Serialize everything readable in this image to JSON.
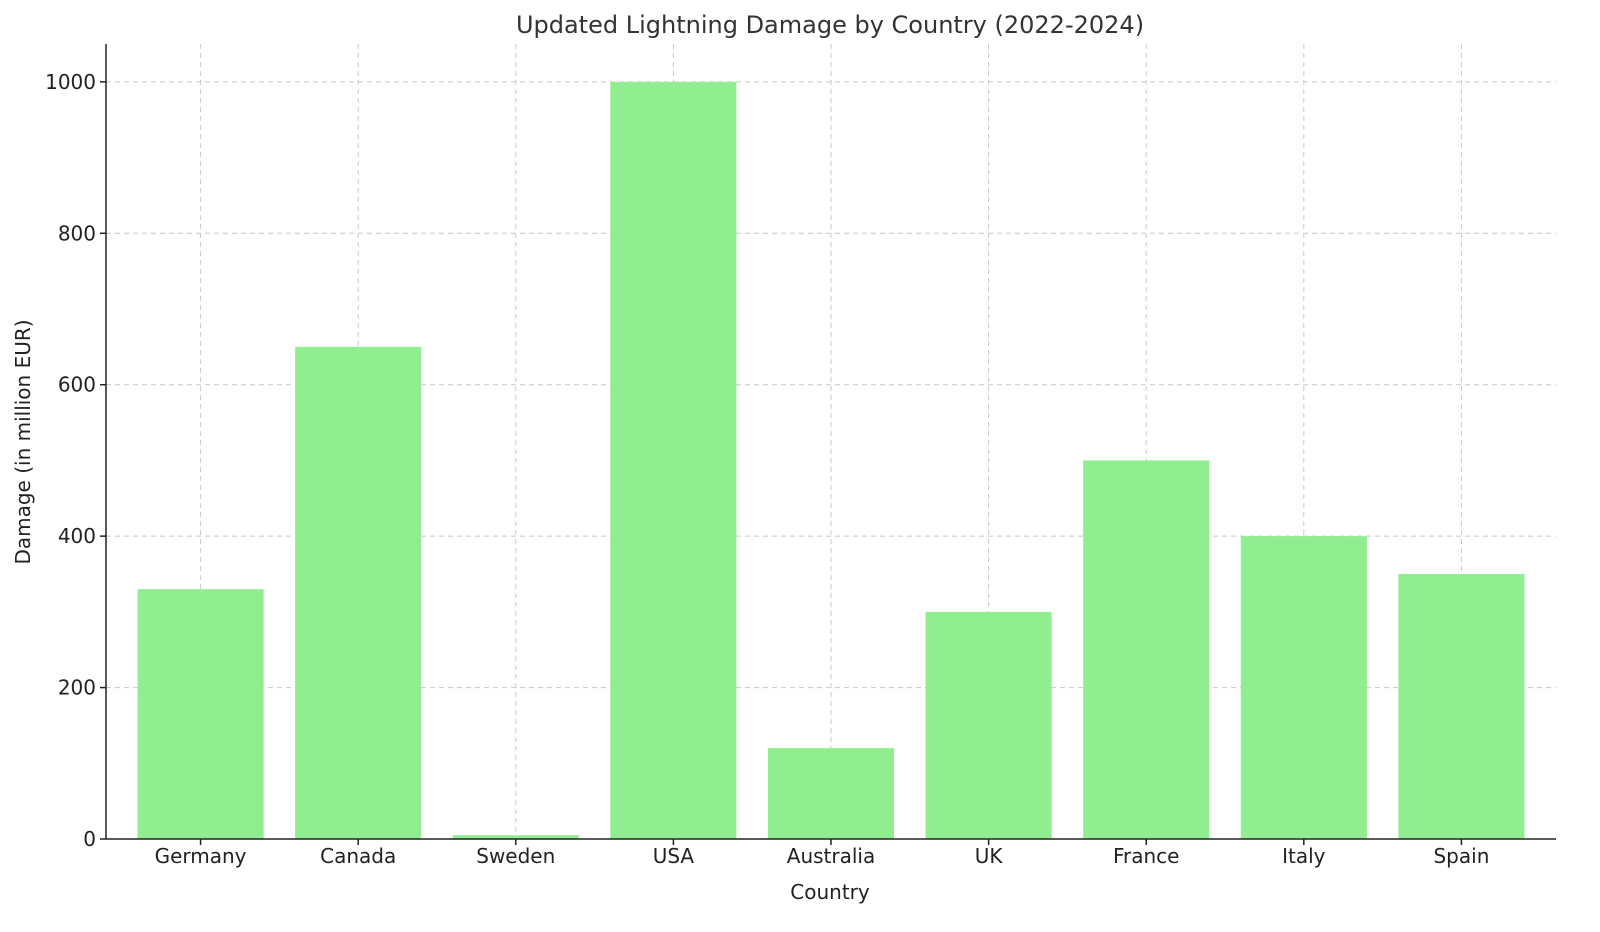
{
  "chart_data": {
    "type": "bar",
    "title": "Updated Lightning Damage by Country (2022-2024)",
    "xlabel": "Country",
    "ylabel": "Damage (in million EUR)",
    "categories": [
      "Germany",
      "Canada",
      "Sweden",
      "USA",
      "Australia",
      "UK",
      "France",
      "Italy",
      "Spain"
    ],
    "values": [
      330,
      650,
      5,
      1000,
      120,
      300,
      500,
      400,
      350
    ],
    "ylim": [
      0,
      1050
    ],
    "yticks": [
      0,
      200,
      400,
      600,
      800,
      1000
    ],
    "grid": true,
    "bar_color": "#90EE90",
    "colors": {
      "bar": "#90EE90",
      "grid": "#c8c8c8",
      "axis": "#222222"
    }
  }
}
